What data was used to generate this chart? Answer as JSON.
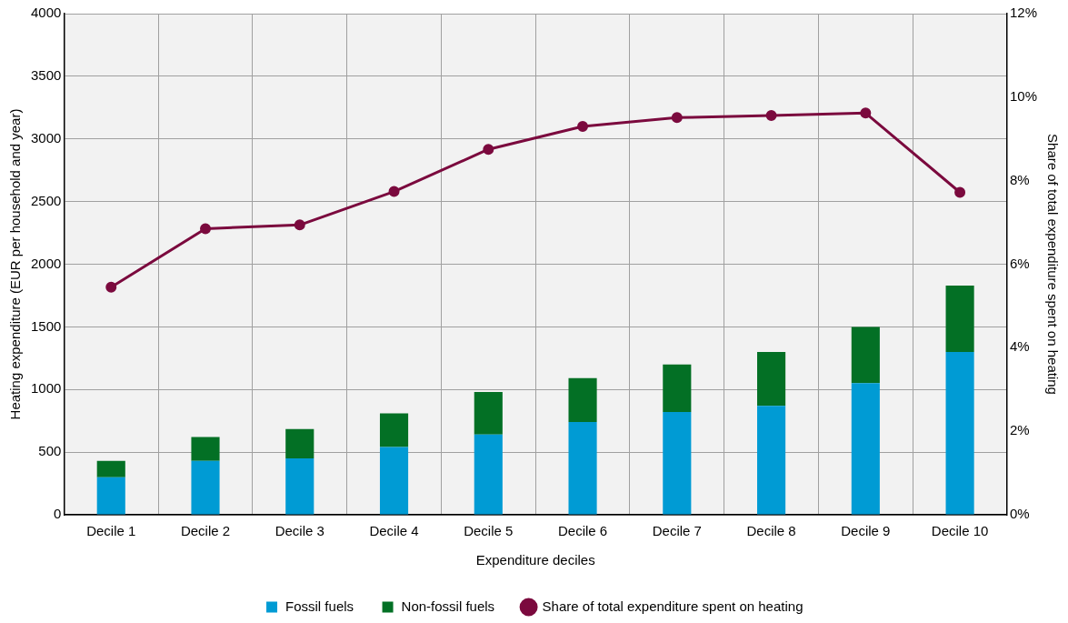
{
  "chart_data": {
    "type": "bar",
    "stacked": true,
    "xlabel": "Expenditure deciles",
    "ylabel": "Heating expenditure (EUR per household and year)",
    "y2label": "Share of total expenditure spent on heating",
    "categories": [
      "Decile 1",
      "Decile 2",
      "Decile 3",
      "Decile 4",
      "Decile 5",
      "Decile 6",
      "Decile 7",
      "Decile 8",
      "Decile 9",
      "Decile 10"
    ],
    "series": [
      {
        "name": "Fossil fuels",
        "color": "#009bd4",
        "values": [
          300,
          430,
          450,
          540,
          640,
          740,
          820,
          870,
          1050,
          1300
        ]
      },
      {
        "name": "Non-fossil fuels",
        "color": "#037025",
        "values": [
          130,
          190,
          235,
          270,
          340,
          350,
          380,
          430,
          450,
          530
        ]
      },
      {
        "name": "Share of total expenditure spent on heating",
        "type": "line",
        "axis": "y2",
        "color": "#7b0a3e",
        "marker": "circle",
        "values": [
          5.45,
          6.85,
          6.94,
          7.74,
          8.75,
          9.3,
          9.51,
          9.56,
          9.62,
          7.72
        ]
      }
    ],
    "ylim": [
      0,
      4000
    ],
    "yticks": [
      0,
      500,
      1000,
      1500,
      2000,
      2500,
      3000,
      3500,
      4000
    ],
    "y2lim": [
      0,
      12
    ],
    "y2ticks": [
      {
        "value": 0,
        "label": "0%"
      },
      {
        "value": 2,
        "label": "2%"
      },
      {
        "value": 4,
        "label": "4%"
      },
      {
        "value": 6,
        "label": "6%"
      },
      {
        "value": 8,
        "label": "8%"
      },
      {
        "value": 10,
        "label": "10%"
      },
      {
        "value": 12,
        "label": "12%"
      }
    ],
    "grid": true,
    "legend": "bottom"
  }
}
